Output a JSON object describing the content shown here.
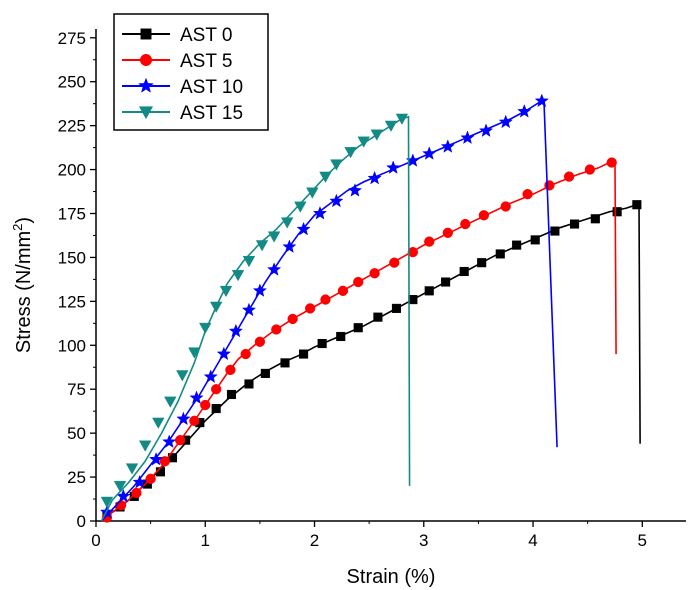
{
  "chart_data": {
    "type": "line",
    "title": "",
    "xlabel": "Strain (%)",
    "ylabel_main": "Stress (N/mm",
    "ylabel_sup": "2",
    "ylabel_close": ")",
    "xlim": [
      0,
      5.4
    ],
    "ylim": [
      0,
      280
    ],
    "xticks": [
      0,
      1,
      2,
      3,
      4,
      5
    ],
    "yticks": [
      0,
      25,
      50,
      75,
      100,
      125,
      150,
      175,
      200,
      225,
      250,
      275
    ],
    "grid": false,
    "legend_position": "top-left",
    "series": [
      {
        "name": "AST 0",
        "color": "#000000",
        "marker": "square",
        "points": [
          [
            0.05,
            0
          ],
          [
            0.1,
            3
          ],
          [
            0.2,
            7
          ],
          [
            0.3,
            12
          ],
          [
            0.4,
            18
          ],
          [
            0.5,
            24
          ],
          [
            0.6,
            30
          ],
          [
            0.7,
            36
          ],
          [
            0.8,
            43
          ],
          [
            0.9,
            50
          ],
          [
            1.0,
            57
          ],
          [
            1.1,
            63
          ],
          [
            1.2,
            69
          ],
          [
            1.3,
            74
          ],
          [
            1.4,
            79
          ],
          [
            1.55,
            85
          ],
          [
            1.7,
            90
          ],
          [
            1.85,
            94
          ],
          [
            2.0,
            99
          ],
          [
            2.15,
            103
          ],
          [
            2.3,
            107
          ],
          [
            2.45,
            111
          ],
          [
            2.6,
            116
          ],
          [
            2.75,
            121
          ],
          [
            2.9,
            126
          ],
          [
            3.05,
            131
          ],
          [
            3.2,
            136
          ],
          [
            3.35,
            141
          ],
          [
            3.5,
            146
          ],
          [
            3.65,
            151
          ],
          [
            3.8,
            155
          ],
          [
            3.95,
            159
          ],
          [
            4.1,
            163
          ],
          [
            4.25,
            167
          ],
          [
            4.4,
            170
          ],
          [
            4.55,
            173
          ],
          [
            4.7,
            176
          ],
          [
            4.85,
            178
          ],
          [
            4.95,
            180
          ],
          [
            4.97,
            180
          ],
          [
            4.98,
            44
          ]
        ],
        "marker_points": [
          [
            0.1,
            3
          ],
          [
            0.22,
            8
          ],
          [
            0.35,
            14
          ],
          [
            0.47,
            21
          ],
          [
            0.59,
            28
          ],
          [
            0.7,
            36
          ],
          [
            0.82,
            46
          ],
          [
            0.95,
            56
          ],
          [
            1.1,
            64
          ],
          [
            1.24,
            72
          ],
          [
            1.4,
            78
          ],
          [
            1.55,
            84
          ],
          [
            1.73,
            90
          ],
          [
            1.9,
            95
          ],
          [
            2.07,
            101
          ],
          [
            2.24,
            105
          ],
          [
            2.4,
            110
          ],
          [
            2.58,
            116
          ],
          [
            2.75,
            121
          ],
          [
            2.9,
            126
          ],
          [
            3.05,
            131
          ],
          [
            3.2,
            136
          ],
          [
            3.37,
            142
          ],
          [
            3.53,
            147
          ],
          [
            3.7,
            152
          ],
          [
            3.85,
            157
          ],
          [
            4.02,
            160
          ],
          [
            4.2,
            165
          ],
          [
            4.38,
            169
          ],
          [
            4.57,
            172
          ],
          [
            4.77,
            176
          ],
          [
            4.95,
            180
          ]
        ]
      },
      {
        "name": "AST 5",
        "color": "#ff0000",
        "marker": "circle",
        "points": [
          [
            0.05,
            0
          ],
          [
            0.15,
            5
          ],
          [
            0.3,
            12
          ],
          [
            0.45,
            21
          ],
          [
            0.6,
            31
          ],
          [
            0.75,
            44
          ],
          [
            0.9,
            57
          ],
          [
            1.0,
            66
          ],
          [
            1.1,
            75
          ],
          [
            1.2,
            84
          ],
          [
            1.3,
            92
          ],
          [
            1.45,
            100
          ],
          [
            1.6,
            107
          ],
          [
            1.8,
            115
          ],
          [
            2.0,
            122
          ],
          [
            2.2,
            129
          ],
          [
            2.4,
            136
          ],
          [
            2.6,
            143
          ],
          [
            2.8,
            150
          ],
          [
            3.0,
            157
          ],
          [
            3.2,
            163
          ],
          [
            3.4,
            169
          ],
          [
            3.6,
            175
          ],
          [
            3.8,
            181
          ],
          [
            4.0,
            186
          ],
          [
            4.2,
            192
          ],
          [
            4.4,
            197
          ],
          [
            4.6,
            201
          ],
          [
            4.7,
            204
          ],
          [
            4.75,
            205
          ],
          [
            4.76,
            95
          ]
        ],
        "marker_points": [
          [
            0.1,
            2
          ],
          [
            0.23,
            9
          ],
          [
            0.37,
            16
          ],
          [
            0.5,
            24
          ],
          [
            0.63,
            34
          ],
          [
            0.77,
            46
          ],
          [
            0.9,
            57
          ],
          [
            1.0,
            66
          ],
          [
            1.1,
            75
          ],
          [
            1.23,
            86
          ],
          [
            1.37,
            95
          ],
          [
            1.5,
            102
          ],
          [
            1.65,
            109
          ],
          [
            1.8,
            115
          ],
          [
            1.96,
            121
          ],
          [
            2.1,
            126
          ],
          [
            2.26,
            131
          ],
          [
            2.4,
            136
          ],
          [
            2.55,
            141
          ],
          [
            2.73,
            147
          ],
          [
            2.9,
            153
          ],
          [
            3.05,
            159
          ],
          [
            3.22,
            164
          ],
          [
            3.38,
            169
          ],
          [
            3.55,
            174
          ],
          [
            3.75,
            179
          ],
          [
            3.95,
            186
          ],
          [
            4.15,
            191
          ],
          [
            4.33,
            196
          ],
          [
            4.52,
            200
          ],
          [
            4.72,
            204
          ]
        ]
      },
      {
        "name": "AST 10",
        "color": "#0000ff",
        "marker": "star",
        "points": [
          [
            0.05,
            0
          ],
          [
            0.2,
            10
          ],
          [
            0.35,
            20
          ],
          [
            0.5,
            32
          ],
          [
            0.65,
            44
          ],
          [
            0.8,
            58
          ],
          [
            0.95,
            72
          ],
          [
            1.1,
            88
          ],
          [
            1.25,
            104
          ],
          [
            1.4,
            120
          ],
          [
            1.55,
            136
          ],
          [
            1.7,
            150
          ],
          [
            1.85,
            163
          ],
          [
            2.0,
            174
          ],
          [
            2.15,
            181
          ],
          [
            2.3,
            188
          ],
          [
            2.45,
            193
          ],
          [
            2.6,
            197
          ],
          [
            2.75,
            201
          ],
          [
            2.9,
            205
          ],
          [
            3.05,
            209
          ],
          [
            3.2,
            213
          ],
          [
            3.35,
            217
          ],
          [
            3.5,
            221
          ],
          [
            3.65,
            225
          ],
          [
            3.8,
            229
          ],
          [
            3.95,
            234
          ],
          [
            4.05,
            238
          ],
          [
            4.1,
            239
          ],
          [
            4.22,
            42
          ]
        ],
        "marker_points": [
          [
            0.1,
            5
          ],
          [
            0.25,
            14
          ],
          [
            0.4,
            22
          ],
          [
            0.55,
            35
          ],
          [
            0.67,
            45
          ],
          [
            0.8,
            58
          ],
          [
            0.92,
            70
          ],
          [
            1.05,
            82
          ],
          [
            1.17,
            95
          ],
          [
            1.28,
            108
          ],
          [
            1.4,
            120
          ],
          [
            1.5,
            131
          ],
          [
            1.63,
            143
          ],
          [
            1.77,
            156
          ],
          [
            1.9,
            166
          ],
          [
            2.05,
            175
          ],
          [
            2.2,
            182
          ],
          [
            2.37,
            188
          ],
          [
            2.55,
            195
          ],
          [
            2.72,
            201
          ],
          [
            2.9,
            205
          ],
          [
            3.05,
            209
          ],
          [
            3.22,
            213
          ],
          [
            3.4,
            218
          ],
          [
            3.57,
            222
          ],
          [
            3.75,
            227
          ],
          [
            3.92,
            233
          ],
          [
            4.08,
            239
          ]
        ]
      },
      {
        "name": "AST 15",
        "color": "#138b84",
        "marker": "triangle-down",
        "points": [
          [
            0.05,
            0
          ],
          [
            0.15,
            12
          ],
          [
            0.3,
            22
          ],
          [
            0.45,
            34
          ],
          [
            0.6,
            50
          ],
          [
            0.75,
            68
          ],
          [
            0.9,
            90
          ],
          [
            1.0,
            108
          ],
          [
            1.1,
            122
          ],
          [
            1.2,
            135
          ],
          [
            1.35,
            148
          ],
          [
            1.5,
            158
          ],
          [
            1.65,
            166
          ],
          [
            1.8,
            176
          ],
          [
            1.95,
            186
          ],
          [
            2.1,
            196
          ],
          [
            2.25,
            205
          ],
          [
            2.4,
            213
          ],
          [
            2.55,
            219
          ],
          [
            2.7,
            225
          ],
          [
            2.8,
            229
          ],
          [
            2.86,
            230
          ],
          [
            2.87,
            20
          ]
        ],
        "marker_points": [
          [
            0.1,
            11
          ],
          [
            0.22,
            20
          ],
          [
            0.33,
            30
          ],
          [
            0.45,
            43
          ],
          [
            0.57,
            56
          ],
          [
            0.68,
            68
          ],
          [
            0.79,
            83
          ],
          [
            0.9,
            96
          ],
          [
            1.0,
            110
          ],
          [
            1.1,
            122
          ],
          [
            1.19,
            131
          ],
          [
            1.3,
            140
          ],
          [
            1.4,
            148
          ],
          [
            1.52,
            157
          ],
          [
            1.63,
            162
          ],
          [
            1.75,
            170
          ],
          [
            1.87,
            179
          ],
          [
            1.98,
            187
          ],
          [
            2.1,
            196
          ],
          [
            2.2,
            203
          ],
          [
            2.33,
            210
          ],
          [
            2.45,
            216
          ],
          [
            2.57,
            220
          ],
          [
            2.7,
            225
          ],
          [
            2.8,
            229
          ]
        ]
      }
    ]
  }
}
